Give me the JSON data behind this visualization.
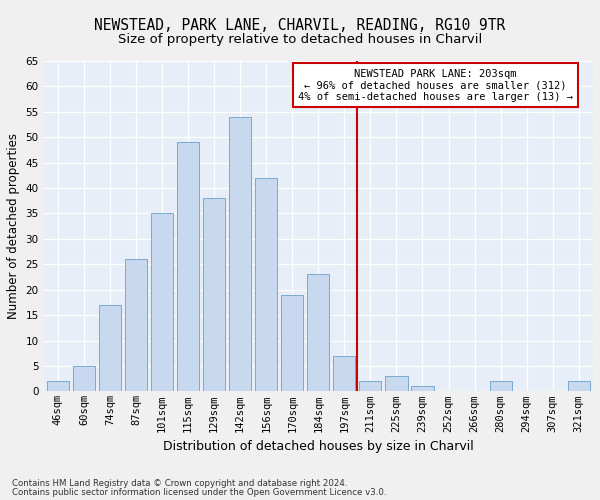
{
  "title1": "NEWSTEAD, PARK LANE, CHARVIL, READING, RG10 9TR",
  "title2": "Size of property relative to detached houses in Charvil",
  "xlabel": "Distribution of detached houses by size in Charvil",
  "ylabel": "Number of detached properties",
  "categories": [
    "46sqm",
    "60sqm",
    "74sqm",
    "87sqm",
    "101sqm",
    "115sqm",
    "129sqm",
    "142sqm",
    "156sqm",
    "170sqm",
    "184sqm",
    "197sqm",
    "211sqm",
    "225sqm",
    "239sqm",
    "252sqm",
    "266sqm",
    "280sqm",
    "294sqm",
    "307sqm",
    "321sqm"
  ],
  "values": [
    2,
    5,
    17,
    26,
    35,
    49,
    38,
    54,
    42,
    19,
    23,
    7,
    2,
    3,
    1,
    0,
    0,
    2,
    0,
    0,
    2
  ],
  "bar_color": "#c8d8ee",
  "bar_edge_color": "#7aaad0",
  "vline_x": 11.5,
  "vline_color": "#cc0000",
  "annotation_text": "NEWSTEAD PARK LANE: 203sqm\n← 96% of detached houses are smaller (312)\n4% of semi-detached houses are larger (13) →",
  "annotation_box_color": "#ffffff",
  "annotation_box_edge": "#cc0000",
  "footer1": "Contains HM Land Registry data © Crown copyright and database right 2024.",
  "footer2": "Contains public sector information licensed under the Open Government Licence v3.0.",
  "ylim_min": 0,
  "ylim_max": 65,
  "yticks": [
    0,
    5,
    10,
    15,
    20,
    25,
    30,
    35,
    40,
    45,
    50,
    55,
    60,
    65
  ],
  "bg_color": "#e8eef8",
  "grid_color": "#ffffff",
  "fig_bg_color": "#f0f0f0",
  "title1_fontsize": 10.5,
  "title2_fontsize": 9.5,
  "tick_fontsize": 7.5,
  "ylabel_fontsize": 8.5,
  "xlabel_fontsize": 9,
  "annotation_fontsize": 7.5,
  "footer_fontsize": 6.2
}
